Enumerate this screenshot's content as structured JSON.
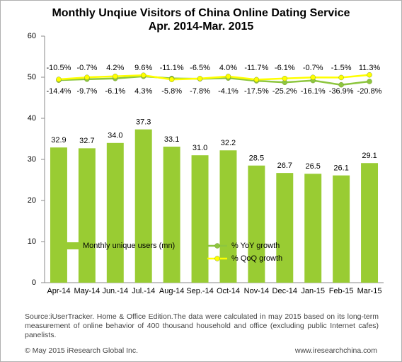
{
  "chart_data": {
    "type": "bar",
    "title": "Monthly Unqiue Visitors of China Online Dating Service",
    "subtitle": "Apr. 2014-Mar. 2015",
    "categories": [
      "Apr-14",
      "May-14",
      "Jun.-14",
      "Jul.-14",
      "Aug-14",
      "Sep.-14",
      "Oct-14",
      "Nov-14",
      "Dec-14",
      "Jan-15",
      "Feb-15",
      "Mar-15"
    ],
    "series": [
      {
        "name": "Monthly unique users (mn)",
        "type": "bar",
        "color": "#99cc33",
        "values": [
          32.9,
          32.7,
          34.0,
          37.3,
          33.1,
          31.0,
          32.2,
          28.5,
          26.7,
          26.5,
          26.1,
          29.1
        ],
        "value_labels": [
          "32.9",
          "32.7",
          "34.0",
          "37.3",
          "33.1",
          "31.0",
          "32.2",
          "28.5",
          "26.7",
          "26.5",
          "26.1",
          "29.1"
        ]
      },
      {
        "name": "% YoY growth",
        "type": "line",
        "axis": "y2",
        "color": "#8dc63f",
        "values": [
          -14.4,
          -9.7,
          -6.1,
          4.3,
          -5.8,
          -7.8,
          -4.1,
          -17.5,
          -25.2,
          -16.1,
          -36.9,
          -20.8
        ],
        "value_labels": [
          "-14.4%",
          "-9.7%",
          "-6.1%",
          "4.3%",
          "-5.8%",
          "-7.8%",
          "-4.1%",
          "-17.5%",
          "-25.2%",
          "-16.1%",
          "-36.9%",
          "-20.8%"
        ]
      },
      {
        "name": "% QoQ growth",
        "type": "line",
        "axis": "y2",
        "color": "#ffff00",
        "values": [
          -10.5,
          -0.7,
          4.2,
          9.6,
          -11.1,
          -6.5,
          4.0,
          -11.7,
          -6.1,
          -0.7,
          -1.5,
          11.3
        ],
        "value_labels": [
          "-10.5%",
          "-0.7%",
          "4.2%",
          "9.6%",
          "-11.1%",
          "-6.5%",
          "4.0%",
          "-11.7%",
          "-6.1%",
          "-0.7%",
          "-1.5%",
          "11.3%"
        ]
      }
    ],
    "ylim": [
      0,
      60
    ],
    "yticks": [
      0,
      10,
      20,
      30,
      40,
      50,
      60
    ],
    "y2lim": [
      -1000,
      200
    ],
    "grid": false,
    "legend": "bottom",
    "source": "Source:iUserTracker. Home & Office Edition.The data were calculated in may 2015 based on its long-term measurement of online behavior of 400 thousand household and office (excluding public Internet cafes) panelists.",
    "copyright": "© May 2015 iResearch Global Inc.",
    "website": "www.iresearchchina.com"
  }
}
